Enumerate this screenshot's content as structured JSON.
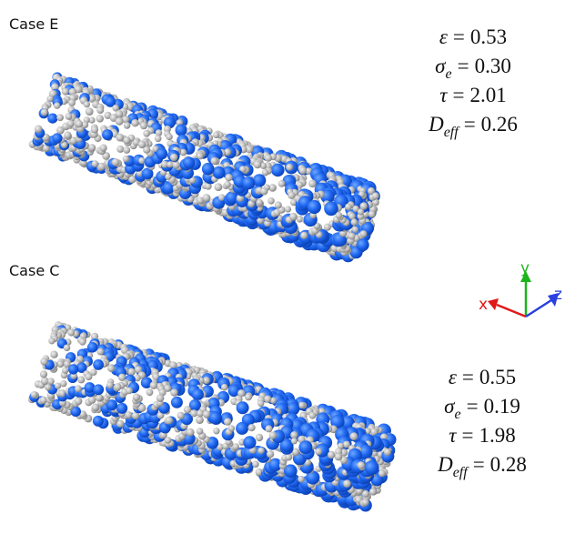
{
  "panels": [
    {
      "label": "Case E",
      "equations": [
        {
          "symbol": "ε",
          "subscript": null,
          "relation": "=",
          "value": "0.53"
        },
        {
          "symbol": "σ",
          "subscript": "e",
          "relation": "=",
          "value": "0.30"
        },
        {
          "symbol": "τ",
          "subscript": null,
          "relation": "=",
          "value": "2.01"
        },
        {
          "symbol": "D",
          "subscript": "eff",
          "relation": "=",
          "value": "0.26"
        }
      ]
    },
    {
      "label": "Case C",
      "equations": [
        {
          "symbol": "ε",
          "subscript": null,
          "relation": "=",
          "value": "0.55"
        },
        {
          "symbol": "σ",
          "subscript": "e",
          "relation": "=",
          "value": "0.19"
        },
        {
          "symbol": "τ",
          "subscript": null,
          "relation": "=",
          "value": "1.98"
        },
        {
          "symbol": "D",
          "subscript": "eff",
          "relation": "=",
          "value": "0.28"
        }
      ]
    }
  ],
  "axes": {
    "x": "x",
    "y": "y",
    "z": "z"
  }
}
